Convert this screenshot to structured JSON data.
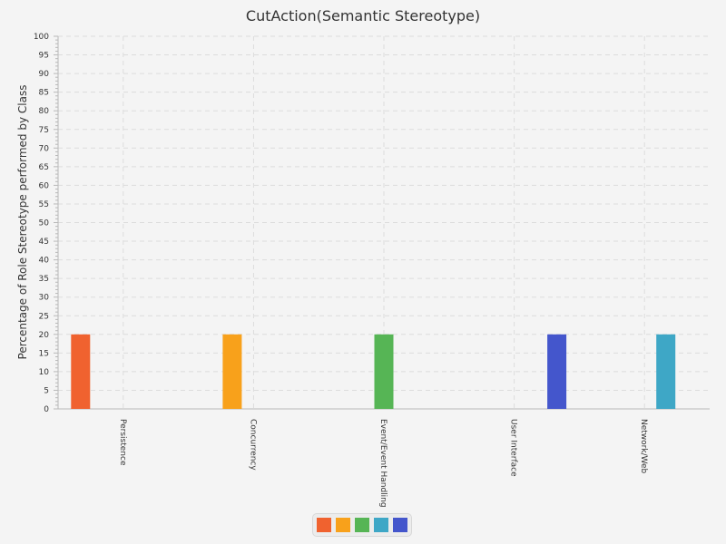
{
  "chart_data": {
    "type": "bar",
    "title": "CutAction(Semantic Stereotype)",
    "xlabel": "",
    "ylabel": "Percentage of Role Stereotype performed by Class",
    "ylim": [
      0,
      100
    ],
    "y_tick_step": 5,
    "grid": true,
    "legend_position": "bottom",
    "categories": [
      "Persistence",
      "Concurrency",
      "Event/Event Handling",
      "User Interface",
      "Network/Web"
    ],
    "series": [
      {
        "color": "#f0622f",
        "values": [
          20,
          null,
          null,
          null,
          null
        ]
      },
      {
        "color": "#f8a11b",
        "values": [
          null,
          20,
          null,
          null,
          null
        ]
      },
      {
        "color": "#56b555",
        "values": [
          null,
          null,
          20,
          null,
          null
        ]
      },
      {
        "color": "#3ea7c6",
        "values": [
          null,
          null,
          null,
          null,
          20
        ]
      },
      {
        "color": "#4456cc",
        "values": [
          null,
          null,
          null,
          20,
          null
        ]
      }
    ]
  }
}
